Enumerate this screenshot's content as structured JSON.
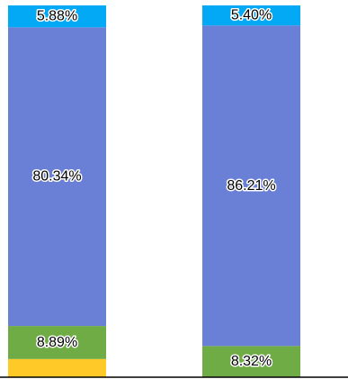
{
  "chart_data": {
    "type": "bar",
    "stacked": true,
    "normalized": true,
    "categories": [
      "",
      ""
    ],
    "series": [
      {
        "values": [
          0.0489,
          0.0007
        ],
        "color": "#FFCA28"
      },
      {
        "values": [
          0.0889,
          0.0832
        ],
        "color": "#6FAC46"
      },
      {
        "values": [
          0.8034,
          0.8621
        ],
        "color": "#6A7FD6"
      },
      {
        "values": [
          0.0588,
          0.054
        ],
        "color": "#03A9F4"
      }
    ],
    "labels": [
      [
        "",
        "8.89%",
        "80.34%",
        "5.88%"
      ],
      [
        "",
        "8.32%",
        "86.21%",
        "5.40%"
      ]
    ],
    "ylim": [
      0,
      1
    ],
    "grid": false,
    "legend": "none",
    "baseline_color": "#000000"
  }
}
